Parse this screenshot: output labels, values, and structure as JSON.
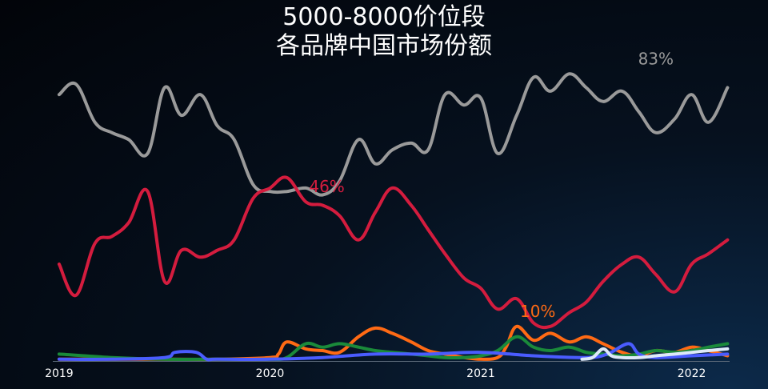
{
  "chart_data": {
    "type": "line",
    "title_line1": "5000-8000价位段",
    "title_line2": "各品牌中国市场份额",
    "xlabel": "",
    "ylabel": "",
    "x_range": [
      2018.97,
      2022.18
    ],
    "ylim": [
      0,
      90
    ],
    "x_ticks": [
      {
        "x": 2019.0,
        "label": "2019"
      },
      {
        "x": 2020.0,
        "label": "2020"
      },
      {
        "x": 2021.0,
        "label": "2021"
      },
      {
        "x": 2022.0,
        "label": "2022"
      }
    ],
    "grid": false,
    "legend": "none",
    "series": [
      {
        "color": "#9a9a9a",
        "x": [
          2019.0,
          2019.08,
          2019.17,
          2019.25,
          2019.33,
          2019.42,
          2019.5,
          2019.58,
          2019.67,
          2019.75,
          2019.83,
          2019.92,
          2020.0,
          2020.08,
          2020.17,
          2020.25,
          2020.33,
          2020.42,
          2020.5,
          2020.58,
          2020.67,
          2020.75,
          2020.83,
          2020.92,
          2021.0,
          2021.08,
          2021.17,
          2021.25,
          2021.33,
          2021.42,
          2021.5,
          2021.58,
          2021.67,
          2021.75,
          2021.83,
          2021.92,
          2022.0,
          2022.08,
          2022.17
        ],
        "values": [
          77,
          80,
          69,
          66,
          64,
          60,
          79,
          71,
          77,
          68,
          64,
          51,
          49,
          49,
          50,
          48,
          52,
          64,
          57,
          61,
          63,
          61,
          77,
          74,
          76,
          60,
          71,
          82,
          78,
          83,
          79,
          75,
          78,
          72,
          66,
          70,
          77,
          69,
          79
        ]
      },
      {
        "color": "#d41c3e",
        "x": [
          2019.0,
          2019.08,
          2019.17,
          2019.25,
          2019.33,
          2019.42,
          2019.5,
          2019.58,
          2019.67,
          2019.75,
          2019.83,
          2019.92,
          2020.0,
          2020.08,
          2020.17,
          2020.25,
          2020.33,
          2020.42,
          2020.5,
          2020.58,
          2020.67,
          2020.75,
          2020.83,
          2020.92,
          2021.0,
          2021.08,
          2021.17,
          2021.25,
          2021.33,
          2021.42,
          2021.5,
          2021.58,
          2021.67,
          2021.75,
          2021.83,
          2021.92,
          2022.0,
          2022.08,
          2022.17
        ],
        "values": [
          28,
          19,
          34,
          36,
          40,
          49,
          23,
          32,
          30,
          32,
          35,
          47,
          50,
          53,
          46,
          45,
          42,
          35,
          43,
          50,
          45,
          38,
          31,
          24,
          21,
          15,
          18,
          11,
          10,
          14,
          17,
          23,
          28,
          30,
          25,
          20,
          28,
          31,
          35
        ]
      },
      {
        "color": "#ff6a14",
        "x": [
          2019.0,
          2019.25,
          2019.5,
          2019.75,
          2020.0,
          2020.04,
          2020.08,
          2020.17,
          2020.25,
          2020.33,
          2020.42,
          2020.5,
          2020.58,
          2020.67,
          2020.75,
          2020.83,
          2020.92,
          2021.0,
          2021.08,
          2021.12,
          2021.17,
          2021.25,
          2021.33,
          2021.42,
          2021.5,
          2021.58,
          2021.67,
          2021.75,
          2021.83,
          2021.92,
          2022.0,
          2022.08,
          2022.17
        ],
        "values": [
          0.5,
          0.5,
          0.5,
          0.5,
          1.0,
          2.0,
          5.5,
          3.5,
          3.0,
          2.5,
          7.0,
          9.5,
          8.0,
          5.5,
          3.0,
          2.0,
          1.0,
          0.5,
          1.0,
          4.0,
          10.0,
          6.0,
          8.0,
          5.5,
          7.0,
          5.0,
          2.5,
          1.5,
          3.0,
          2.5,
          4.0,
          3.0,
          1.5
        ]
      },
      {
        "color": "#1a8a3a",
        "x": [
          2019.0,
          2019.25,
          2019.5,
          2019.75,
          2020.0,
          2020.08,
          2020.17,
          2020.25,
          2020.33,
          2020.42,
          2020.5,
          2020.58,
          2020.67,
          2020.75,
          2020.83,
          2020.92,
          2021.0,
          2021.08,
          2021.17,
          2021.25,
          2021.33,
          2021.42,
          2021.5,
          2021.58,
          2021.67,
          2021.75,
          2021.83,
          2021.92,
          2022.0,
          2022.08,
          2022.17
        ],
        "values": [
          2.0,
          1.0,
          0.5,
          0.5,
          0.5,
          1.0,
          5.0,
          4.0,
          5.0,
          4.0,
          3.0,
          2.5,
          2.0,
          1.5,
          1.0,
          1.0,
          1.5,
          3.0,
          7.0,
          4.0,
          3.0,
          4.0,
          2.5,
          2.0,
          1.5,
          2.0,
          3.0,
          2.5,
          3.0,
          4.0,
          5.0
        ]
      },
      {
        "color": "#4a5cff",
        "x": [
          2019.0,
          2019.25,
          2019.5,
          2019.55,
          2019.65,
          2019.7,
          2019.75,
          2020.0,
          2020.25,
          2020.5,
          2020.75,
          2021.0,
          2021.25,
          2021.5,
          2021.6,
          2021.7,
          2021.75,
          2021.83,
          2022.0,
          2022.17
        ],
        "values": [
          0.5,
          0.5,
          1.0,
          2.5,
          2.5,
          0.5,
          0.5,
          0.5,
          1.0,
          2.0,
          2.0,
          2.5,
          1.5,
          1.0,
          2.0,
          5.0,
          2.0,
          1.0,
          1.5,
          2.0
        ]
      },
      {
        "color": "#dde9f8",
        "x": [
          2021.48,
          2021.53,
          2021.58,
          2021.62,
          2021.67,
          2021.75,
          2021.83,
          2021.92,
          2022.0,
          2022.08,
          2022.17
        ],
        "values": [
          0.5,
          1.0,
          3.5,
          1.5,
          1.0,
          1.0,
          1.5,
          2.0,
          2.5,
          3.0,
          3.5
        ]
      }
    ],
    "annotations": [
      {
        "text": "83%",
        "x": 2021.83,
        "y": 83,
        "color": "#9a9a9a"
      },
      {
        "text": "46%",
        "x": 2020.27,
        "y": 46,
        "color": "#d41c3e"
      },
      {
        "text": "10%",
        "x": 2021.27,
        "y": 10,
        "color": "#ff6a14"
      }
    ]
  }
}
